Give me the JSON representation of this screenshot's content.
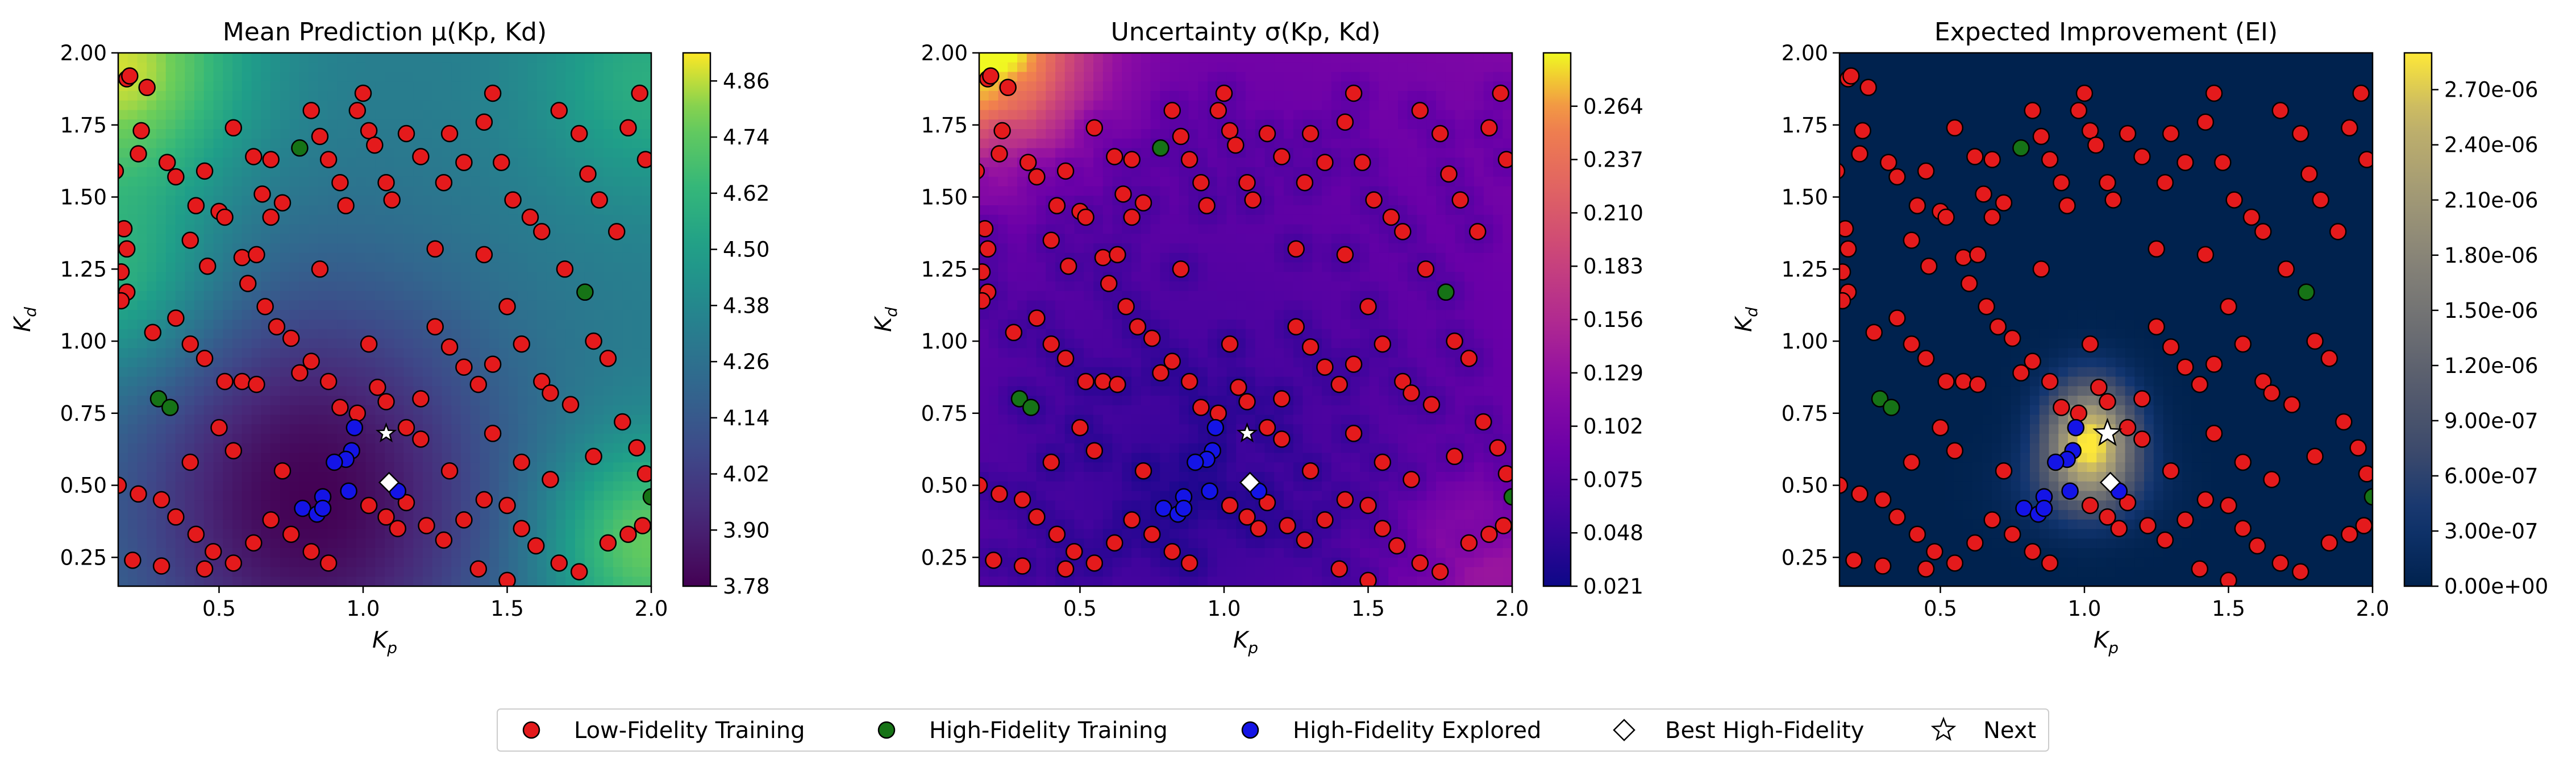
{
  "legend": {
    "items": [
      {
        "label": "Low-Fidelity Training",
        "marker": "circle",
        "color": "#e41a1c"
      },
      {
        "label": "High-Fidelity Training",
        "marker": "circle",
        "color": "#167316"
      },
      {
        "label": "High-Fidelity Explored",
        "marker": "circle",
        "color": "#1414e6"
      },
      {
        "label": "Best High-Fidelity",
        "marker": "diamond",
        "color": "#ffffff"
      },
      {
        "label": "Next",
        "marker": "star",
        "color": "#ffffff"
      }
    ],
    "placement": "bottom-center"
  },
  "chart_data": [
    {
      "type": "heatmap",
      "title": "Mean Prediction μ(Kp, Kd)",
      "xlabel": "Kp",
      "ylabel": "Kd",
      "xlim": [
        0.15,
        2.0
      ],
      "ylim": [
        0.15,
        2.0
      ],
      "xticks": [
        "0.5",
        "1.0",
        "1.5",
        "2.0"
      ],
      "yticks": [
        "0.25",
        "0.50",
        "0.75",
        "1.00",
        "1.25",
        "1.50",
        "1.75",
        "2.00"
      ],
      "colormap": "viridis",
      "colorbar": {
        "range": [
          3.78,
          4.92
        ],
        "ticks": [
          "3.78",
          "3.90",
          "4.02",
          "4.14",
          "4.26",
          "4.38",
          "4.50",
          "4.62",
          "4.74",
          "4.86"
        ]
      },
      "field": "mean"
    },
    {
      "type": "heatmap",
      "title": "Uncertainty σ(Kp, Kd)",
      "xlabel": "Kp",
      "ylabel": "Kd",
      "xlim": [
        0.15,
        2.0
      ],
      "ylim": [
        0.15,
        2.0
      ],
      "xticks": [
        "0.5",
        "1.0",
        "1.5",
        "2.0"
      ],
      "yticks": [
        "0.25",
        "0.50",
        "0.75",
        "1.00",
        "1.25",
        "1.50",
        "1.75",
        "2.00"
      ],
      "colormap": "plasma",
      "colorbar": {
        "range": [
          0.021,
          0.291
        ],
        "ticks": [
          "0.021",
          "0.048",
          "0.075",
          "0.102",
          "0.129",
          "0.156",
          "0.183",
          "0.210",
          "0.237",
          "0.264"
        ]
      },
      "field": "sigma"
    },
    {
      "type": "heatmap",
      "title": "Expected Improvement (EI)",
      "xlabel": "Kp",
      "ylabel": "Kd",
      "xlim": [
        0.15,
        2.0
      ],
      "ylim": [
        0.15,
        2.0
      ],
      "xticks": [
        "0.5",
        "1.0",
        "1.5",
        "2.0"
      ],
      "yticks": [
        "0.25",
        "0.50",
        "0.75",
        "1.00",
        "1.25",
        "1.50",
        "1.75",
        "2.00"
      ],
      "colormap": "cividis",
      "colorbar": {
        "range": [
          0,
          2.9e-06
        ],
        "ticks": [
          "0.00e+00",
          "3.00e-07",
          "6.00e-07",
          "9.00e-07",
          "1.20e-06",
          "1.50e-06",
          "1.80e-06",
          "2.10e-06",
          "2.40e-06",
          "2.70e-06"
        ]
      },
      "field": "ei"
    }
  ],
  "points": {
    "low_fidelity": [
      [
        0.18,
        1.91
      ],
      [
        0.19,
        1.92
      ],
      [
        0.23,
        1.73
      ],
      [
        0.14,
        1.59
      ],
      [
        0.17,
        1.39
      ],
      [
        0.18,
        1.32
      ],
      [
        0.16,
        1.24
      ],
      [
        0.18,
        1.17
      ],
      [
        0.16,
        1.14
      ],
      [
        0.22,
        1.65
      ],
      [
        0.32,
        1.62
      ],
      [
        0.35,
        1.57
      ],
      [
        0.45,
        1.59
      ],
      [
        0.42,
        1.47
      ],
      [
        0.5,
        1.45
      ],
      [
        0.52,
        1.43
      ],
      [
        0.4,
        1.35
      ],
      [
        0.46,
        1.26
      ],
      [
        0.58,
        1.29
      ],
      [
        0.63,
        1.3
      ],
      [
        0.55,
        1.74
      ],
      [
        0.62,
        1.64
      ],
      [
        0.68,
        1.63
      ],
      [
        0.65,
        1.51
      ],
      [
        0.72,
        1.48
      ],
      [
        0.68,
        1.43
      ],
      [
        0.82,
        1.8
      ],
      [
        0.85,
        1.71
      ],
      [
        0.88,
        1.63
      ],
      [
        0.92,
        1.55
      ],
      [
        0.94,
        1.47
      ],
      [
        0.98,
        1.8
      ],
      [
        1.0,
        1.86
      ],
      [
        1.02,
        1.73
      ],
      [
        1.04,
        1.68
      ],
      [
        1.08,
        1.55
      ],
      [
        1.15,
        1.72
      ],
      [
        1.2,
        1.64
      ],
      [
        1.1,
        1.49
      ],
      [
        1.3,
        1.72
      ],
      [
        1.35,
        1.62
      ],
      [
        1.28,
        1.55
      ],
      [
        1.42,
        1.76
      ],
      [
        1.45,
        1.86
      ],
      [
        1.48,
        1.62
      ],
      [
        1.52,
        1.49
      ],
      [
        1.58,
        1.43
      ],
      [
        1.62,
        1.38
      ],
      [
        1.68,
        1.8
      ],
      [
        1.75,
        1.72
      ],
      [
        1.78,
        1.58
      ],
      [
        1.82,
        1.49
      ],
      [
        1.88,
        1.38
      ],
      [
        1.92,
        1.74
      ],
      [
        1.96,
        1.86
      ],
      [
        1.98,
        1.63
      ],
      [
        0.27,
        1.03
      ],
      [
        0.35,
        1.08
      ],
      [
        0.4,
        0.99
      ],
      [
        0.45,
        0.94
      ],
      [
        0.52,
        0.86
      ],
      [
        0.58,
        0.86
      ],
      [
        0.63,
        0.85
      ],
      [
        0.66,
        1.12
      ],
      [
        0.7,
        1.05
      ],
      [
        0.75,
        1.01
      ],
      [
        0.78,
        0.89
      ],
      [
        0.82,
        0.93
      ],
      [
        0.88,
        0.86
      ],
      [
        0.92,
        0.77
      ],
      [
        0.98,
        0.75
      ],
      [
        1.02,
        0.99
      ],
      [
        1.05,
        0.84
      ],
      [
        1.08,
        0.79
      ],
      [
        1.15,
        0.7
      ],
      [
        1.2,
        0.66
      ],
      [
        1.25,
        1.05
      ],
      [
        1.3,
        0.98
      ],
      [
        1.35,
        0.91
      ],
      [
        1.4,
        0.85
      ],
      [
        1.45,
        0.92
      ],
      [
        1.5,
        1.12
      ],
      [
        1.55,
        0.99
      ],
      [
        1.62,
        0.86
      ],
      [
        1.65,
        0.82
      ],
      [
        1.72,
        0.78
      ],
      [
        1.8,
        1.0
      ],
      [
        1.85,
        0.94
      ],
      [
        1.9,
        0.72
      ],
      [
        1.95,
        0.63
      ],
      [
        1.98,
        0.54
      ],
      [
        0.15,
        0.5
      ],
      [
        0.22,
        0.47
      ],
      [
        0.3,
        0.45
      ],
      [
        0.35,
        0.39
      ],
      [
        0.42,
        0.33
      ],
      [
        0.48,
        0.27
      ],
      [
        0.55,
        0.23
      ],
      [
        0.62,
        0.3
      ],
      [
        0.68,
        0.38
      ],
      [
        0.75,
        0.33
      ],
      [
        0.82,
        0.27
      ],
      [
        0.88,
        0.23
      ],
      [
        1.02,
        0.43
      ],
      [
        1.08,
        0.39
      ],
      [
        1.12,
        0.35
      ],
      [
        1.15,
        0.44
      ],
      [
        1.22,
        0.36
      ],
      [
        1.28,
        0.31
      ],
      [
        1.35,
        0.38
      ],
      [
        1.42,
        0.45
      ],
      [
        1.5,
        0.43
      ],
      [
        1.55,
        0.35
      ],
      [
        1.6,
        0.29
      ],
      [
        1.68,
        0.23
      ],
      [
        1.75,
        0.2
      ],
      [
        1.85,
        0.3
      ],
      [
        1.92,
        0.33
      ],
      [
        1.97,
        0.36
      ],
      [
        0.2,
        0.24
      ],
      [
        0.3,
        0.22
      ],
      [
        0.45,
        0.21
      ],
      [
        1.4,
        0.21
      ],
      [
        1.5,
        0.17
      ],
      [
        0.25,
        1.88
      ],
      [
        0.6,
        1.2
      ],
      [
        0.85,
        1.25
      ],
      [
        1.25,
        1.32
      ],
      [
        1.42,
        1.3
      ],
      [
        1.7,
        1.25
      ],
      [
        0.55,
        0.62
      ],
      [
        0.72,
        0.55
      ],
      [
        1.3,
        0.55
      ],
      [
        1.55,
        0.58
      ],
      [
        1.65,
        0.52
      ],
      [
        1.8,
        0.6
      ],
      [
        0.5,
        0.7
      ],
      [
        1.45,
        0.68
      ],
      [
        0.4,
        0.58
      ],
      [
        1.2,
        0.8
      ]
    ],
    "high_fidelity_training": [
      [
        0.78,
        1.67
      ],
      [
        1.77,
        1.17
      ],
      [
        0.29,
        0.8
      ],
      [
        0.33,
        0.77
      ],
      [
        2.0,
        0.46
      ]
    ],
    "high_fidelity_explored": [
      [
        0.97,
        0.7
      ],
      [
        0.96,
        0.62
      ],
      [
        0.94,
        0.59
      ],
      [
        0.9,
        0.58
      ],
      [
        0.95,
        0.48
      ],
      [
        1.12,
        0.48
      ],
      [
        0.86,
        0.46
      ],
      [
        0.79,
        0.42
      ],
      [
        0.84,
        0.4
      ],
      [
        0.86,
        0.42
      ]
    ],
    "best_high_fidelity": [
      1.09,
      0.51
    ],
    "next": [
      1.08,
      0.68
    ]
  }
}
